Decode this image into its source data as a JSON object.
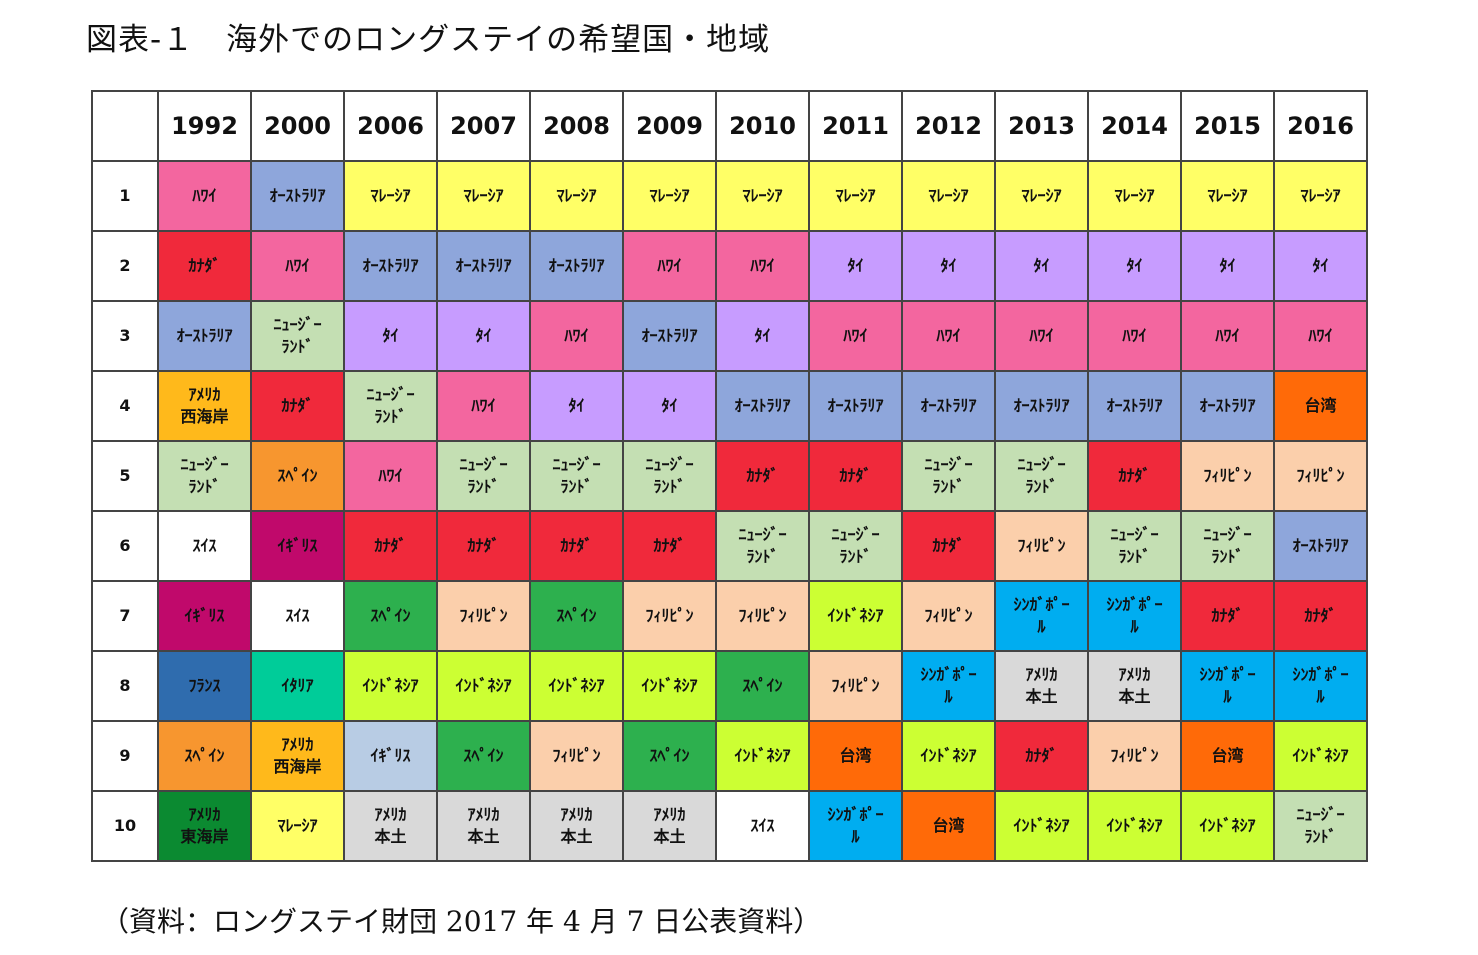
{
  "title": "図表-１　海外でのロングステイの希望国・地域",
  "note": "（資料：ロングステイ財団 2017 年 4 月 7 日公表資料）",
  "colors": {
    "ハワイ": "#f3669f",
    "オーストラリア": "#8ea6db",
    "マレーシア": "#ffff66",
    "カナダ": "#f0293b",
    "タイ": "#c79cff",
    "ニュージーランド": "#c4dfb3",
    "アメリカ西海岸": "#ffb91b",
    "台湾": "#ff6a08",
    "スペイン": "#f7962f",
    "フィリピン": "#fbcfab",
    "スイス": "#ffffff",
    "イギリス": "#c0096b",
    "スペイン_green": "#2db04e",
    "インドネシア": "#ccff33",
    "シンガポール": "#00adf0",
    "フランス": "#2f6cae",
    "イタリア": "#00cc99",
    "アメリカ本土": "#d9d9d9",
    "イギリス_light": "#b8cce4",
    "アメリカ東海岸": "#0b8a31"
  },
  "chart_data": {
    "type": "table",
    "columns": [
      "1992",
      "2000",
      "2006",
      "2007",
      "2008",
      "2009",
      "2010",
      "2011",
      "2012",
      "2013",
      "2014",
      "2015",
      "2016"
    ],
    "rows": [
      {
        "rank": "1",
        "cells": [
          {
            "text": "ﾊﾜｲ",
            "key": "ハワイ"
          },
          {
            "text": "ｵｰｽﾄﾗﾘｱ",
            "key": "オーストラリア"
          },
          {
            "text": "ﾏﾚｰｼｱ",
            "key": "マレーシア"
          },
          {
            "text": "ﾏﾚｰｼｱ",
            "key": "マレーシア"
          },
          {
            "text": "ﾏﾚｰｼｱ",
            "key": "マレーシア"
          },
          {
            "text": "ﾏﾚｰｼｱ",
            "key": "マレーシア"
          },
          {
            "text": "ﾏﾚｰｼｱ",
            "key": "マレーシア"
          },
          {
            "text": "ﾏﾚｰｼｱ",
            "key": "マレーシア"
          },
          {
            "text": "ﾏﾚｰｼｱ",
            "key": "マレーシア"
          },
          {
            "text": "ﾏﾚｰｼｱ",
            "key": "マレーシア"
          },
          {
            "text": "ﾏﾚｰｼｱ",
            "key": "マレーシア"
          },
          {
            "text": "ﾏﾚｰｼｱ",
            "key": "マレーシア"
          },
          {
            "text": "ﾏﾚｰｼｱ",
            "key": "マレーシア"
          }
        ]
      },
      {
        "rank": "2",
        "cells": [
          {
            "text": "ｶﾅﾀﾞ",
            "key": "カナダ"
          },
          {
            "text": "ﾊﾜｲ",
            "key": "ハワイ"
          },
          {
            "text": "ｵｰｽﾄﾗﾘｱ",
            "key": "オーストラリア"
          },
          {
            "text": "ｵｰｽﾄﾗﾘｱ",
            "key": "オーストラリア"
          },
          {
            "text": "ｵｰｽﾄﾗﾘｱ",
            "key": "オーストラリア"
          },
          {
            "text": "ﾊﾜｲ",
            "key": "ハワイ"
          },
          {
            "text": "ﾊﾜｲ",
            "key": "ハワイ"
          },
          {
            "text": "ﾀｲ",
            "key": "タイ"
          },
          {
            "text": "ﾀｲ",
            "key": "タイ"
          },
          {
            "text": "ﾀｲ",
            "key": "タイ"
          },
          {
            "text": "ﾀｲ",
            "key": "タイ"
          },
          {
            "text": "ﾀｲ",
            "key": "タイ"
          },
          {
            "text": "ﾀｲ",
            "key": "タイ"
          }
        ]
      },
      {
        "rank": "3",
        "cells": [
          {
            "text": "ｵｰｽﾄﾗﾘｱ",
            "key": "オーストラリア"
          },
          {
            "text": "ﾆｭｰｼﾞｰ\nﾗﾝﾄﾞ",
            "key": "ニュージーランド"
          },
          {
            "text": "ﾀｲ",
            "key": "タイ"
          },
          {
            "text": "ﾀｲ",
            "key": "タイ"
          },
          {
            "text": "ﾊﾜｲ",
            "key": "ハワイ"
          },
          {
            "text": "ｵｰｽﾄﾗﾘｱ",
            "key": "オーストラリア"
          },
          {
            "text": "ﾀｲ",
            "key": "タイ"
          },
          {
            "text": "ﾊﾜｲ",
            "key": "ハワイ"
          },
          {
            "text": "ﾊﾜｲ",
            "key": "ハワイ"
          },
          {
            "text": "ﾊﾜｲ",
            "key": "ハワイ"
          },
          {
            "text": "ﾊﾜｲ",
            "key": "ハワイ"
          },
          {
            "text": "ﾊﾜｲ",
            "key": "ハワイ"
          },
          {
            "text": "ﾊﾜｲ",
            "key": "ハワイ"
          }
        ]
      },
      {
        "rank": "4",
        "cells": [
          {
            "text": "ｱﾒﾘｶ\n西海岸",
            "key": "アメリカ西海岸"
          },
          {
            "text": "ｶﾅﾀﾞ",
            "key": "カナダ"
          },
          {
            "text": "ﾆｭｰｼﾞｰ\nﾗﾝﾄﾞ",
            "key": "ニュージーランド"
          },
          {
            "text": "ﾊﾜｲ",
            "key": "ハワイ"
          },
          {
            "text": "ﾀｲ",
            "key": "タイ"
          },
          {
            "text": "ﾀｲ",
            "key": "タイ"
          },
          {
            "text": "ｵｰｽﾄﾗﾘｱ",
            "key": "オーストラリア"
          },
          {
            "text": "ｵｰｽﾄﾗﾘｱ",
            "key": "オーストラリア"
          },
          {
            "text": "ｵｰｽﾄﾗﾘｱ",
            "key": "オーストラリア"
          },
          {
            "text": "ｵｰｽﾄﾗﾘｱ",
            "key": "オーストラリア"
          },
          {
            "text": "ｵｰｽﾄﾗﾘｱ",
            "key": "オーストラリア"
          },
          {
            "text": "ｵｰｽﾄﾗﾘｱ",
            "key": "オーストラリア"
          },
          {
            "text": "台湾",
            "key": "台湾"
          }
        ]
      },
      {
        "rank": "5",
        "cells": [
          {
            "text": "ﾆｭｰｼﾞｰ\nﾗﾝﾄﾞ",
            "key": "ニュージーランド"
          },
          {
            "text": "ｽﾍﾟｲﾝ",
            "key": "スペイン"
          },
          {
            "text": "ﾊﾜｲ",
            "key": "ハワイ"
          },
          {
            "text": "ﾆｭｰｼﾞｰ\nﾗﾝﾄﾞ",
            "key": "ニュージーランド"
          },
          {
            "text": "ﾆｭｰｼﾞｰ\nﾗﾝﾄﾞ",
            "key": "ニュージーランド"
          },
          {
            "text": "ﾆｭｰｼﾞｰ\nﾗﾝﾄﾞ",
            "key": "ニュージーランド"
          },
          {
            "text": "ｶﾅﾀﾞ",
            "key": "カナダ"
          },
          {
            "text": "ｶﾅﾀﾞ",
            "key": "カナダ"
          },
          {
            "text": "ﾆｭｰｼﾞｰ\nﾗﾝﾄﾞ",
            "key": "ニュージーランド"
          },
          {
            "text": "ﾆｭｰｼﾞｰ\nﾗﾝﾄﾞ",
            "key": "ニュージーランド"
          },
          {
            "text": "ｶﾅﾀﾞ",
            "key": "カナダ"
          },
          {
            "text": "ﾌｨﾘﾋﾟﾝ",
            "key": "フィリピン"
          },
          {
            "text": "ﾌｨﾘﾋﾟﾝ",
            "key": "フィリピン"
          }
        ]
      },
      {
        "rank": "6",
        "cells": [
          {
            "text": "ｽｲｽ",
            "key": "スイス"
          },
          {
            "text": "ｲｷﾞﾘｽ",
            "key": "イギリス"
          },
          {
            "text": "ｶﾅﾀﾞ",
            "key": "カナダ"
          },
          {
            "text": "ｶﾅﾀﾞ",
            "key": "カナダ"
          },
          {
            "text": "ｶﾅﾀﾞ",
            "key": "カナダ"
          },
          {
            "text": "ｶﾅﾀﾞ",
            "key": "カナダ"
          },
          {
            "text": "ﾆｭｰｼﾞｰ\nﾗﾝﾄﾞ",
            "key": "ニュージーランド"
          },
          {
            "text": "ﾆｭｰｼﾞｰ\nﾗﾝﾄﾞ",
            "key": "ニュージーランド"
          },
          {
            "text": "ｶﾅﾀﾞ",
            "key": "カナダ"
          },
          {
            "text": "ﾌｨﾘﾋﾟﾝ",
            "key": "フィリピン"
          },
          {
            "text": "ﾆｭｰｼﾞｰ\nﾗﾝﾄﾞ",
            "key": "ニュージーランド"
          },
          {
            "text": "ﾆｭｰｼﾞｰ\nﾗﾝﾄﾞ",
            "key": "ニュージーランド"
          },
          {
            "text": "ｵｰｽﾄﾗﾘｱ",
            "key": "オーストラリア"
          }
        ]
      },
      {
        "rank": "7",
        "cells": [
          {
            "text": "ｲｷﾞﾘｽ",
            "key": "イギリス"
          },
          {
            "text": "ｽｲｽ",
            "key": "スイス"
          },
          {
            "text": "ｽﾍﾟｲﾝ",
            "key": "スペイン_green"
          },
          {
            "text": "ﾌｨﾘﾋﾟﾝ",
            "key": "フィリピン"
          },
          {
            "text": "ｽﾍﾟｲﾝ",
            "key": "スペイン_green"
          },
          {
            "text": "ﾌｨﾘﾋﾟﾝ",
            "key": "フィリピン"
          },
          {
            "text": "ﾌｨﾘﾋﾟﾝ",
            "key": "フィリピン"
          },
          {
            "text": "ｲﾝﾄﾞﾈｼｱ",
            "key": "インドネシア"
          },
          {
            "text": "ﾌｨﾘﾋﾟﾝ",
            "key": "フィリピン"
          },
          {
            "text": "ｼﾝｶﾞﾎﾟｰ\nﾙ",
            "key": "シンガポール"
          },
          {
            "text": "ｼﾝｶﾞﾎﾟｰ\nﾙ",
            "key": "シンガポール"
          },
          {
            "text": "ｶﾅﾀﾞ",
            "key": "カナダ"
          },
          {
            "text": "ｶﾅﾀﾞ",
            "key": "カナダ"
          }
        ]
      },
      {
        "rank": "8",
        "cells": [
          {
            "text": "ﾌﾗﾝｽ",
            "key": "フランス"
          },
          {
            "text": "ｲﾀﾘｱ",
            "key": "イタリア"
          },
          {
            "text": "ｲﾝﾄﾞﾈｼｱ",
            "key": "インドネシア"
          },
          {
            "text": "ｲﾝﾄﾞﾈｼｱ",
            "key": "インドネシア"
          },
          {
            "text": "ｲﾝﾄﾞﾈｼｱ",
            "key": "インドネシア"
          },
          {
            "text": "ｲﾝﾄﾞﾈｼｱ",
            "key": "インドネシア"
          },
          {
            "text": "ｽﾍﾟｲﾝ",
            "key": "スペイン_green"
          },
          {
            "text": "ﾌｨﾘﾋﾟﾝ",
            "key": "フィリピン"
          },
          {
            "text": "ｼﾝｶﾞﾎﾟｰ\nﾙ",
            "key": "シンガポール"
          },
          {
            "text": "ｱﾒﾘｶ\n本土",
            "key": "アメリカ本土"
          },
          {
            "text": "ｱﾒﾘｶ\n本土",
            "key": "アメリカ本土"
          },
          {
            "text": "ｼﾝｶﾞﾎﾟｰ\nﾙ",
            "key": "シンガポール"
          },
          {
            "text": "ｼﾝｶﾞﾎﾟｰ\nﾙ",
            "key": "シンガポール"
          }
        ]
      },
      {
        "rank": "9",
        "cells": [
          {
            "text": "ｽﾍﾟｲﾝ",
            "key": "スペイン"
          },
          {
            "text": "ｱﾒﾘｶ\n西海岸",
            "key": "アメリカ西海岸"
          },
          {
            "text": "ｲｷﾞﾘｽ",
            "key": "イギリス_light"
          },
          {
            "text": "ｽﾍﾟｲﾝ",
            "key": "スペイン_green"
          },
          {
            "text": "ﾌｨﾘﾋﾟﾝ",
            "key": "フィリピン"
          },
          {
            "text": "ｽﾍﾟｲﾝ",
            "key": "スペイン_green"
          },
          {
            "text": "ｲﾝﾄﾞﾈｼｱ",
            "key": "インドネシア"
          },
          {
            "text": "台湾",
            "key": "台湾"
          },
          {
            "text": "ｲﾝﾄﾞﾈｼｱ",
            "key": "インドネシア"
          },
          {
            "text": "ｶﾅﾀﾞ",
            "key": "カナダ"
          },
          {
            "text": "ﾌｨﾘﾋﾟﾝ",
            "key": "フィリピン"
          },
          {
            "text": "台湾",
            "key": "台湾"
          },
          {
            "text": "ｲﾝﾄﾞﾈｼｱ",
            "key": "インドネシア"
          }
        ]
      },
      {
        "rank": "10",
        "cells": [
          {
            "text": "ｱﾒﾘｶ\n東海岸",
            "key": "アメリカ東海岸"
          },
          {
            "text": "ﾏﾚｰｼｱ",
            "key": "マレーシア"
          },
          {
            "text": "ｱﾒﾘｶ\n本土",
            "key": "アメリカ本土"
          },
          {
            "text": "ｱﾒﾘｶ\n本土",
            "key": "アメリカ本土"
          },
          {
            "text": "ｱﾒﾘｶ\n本土",
            "key": "アメリカ本土"
          },
          {
            "text": "ｱﾒﾘｶ\n本土",
            "key": "アメリカ本土"
          },
          {
            "text": "ｽｲｽ",
            "key": "スイス"
          },
          {
            "text": "ｼﾝｶﾞﾎﾟｰ\nﾙ",
            "key": "シンガポール"
          },
          {
            "text": "台湾",
            "key": "台湾"
          },
          {
            "text": "ｲﾝﾄﾞﾈｼｱ",
            "key": "インドネシア"
          },
          {
            "text": "ｲﾝﾄﾞﾈｼｱ",
            "key": "インドネシア"
          },
          {
            "text": "ｲﾝﾄﾞﾈｼｱ",
            "key": "インドネシア"
          },
          {
            "text": "ﾆｭｰｼﾞｰ\nﾗﾝﾄﾞ",
            "key": "ニュージーランド"
          }
        ]
      }
    ]
  }
}
